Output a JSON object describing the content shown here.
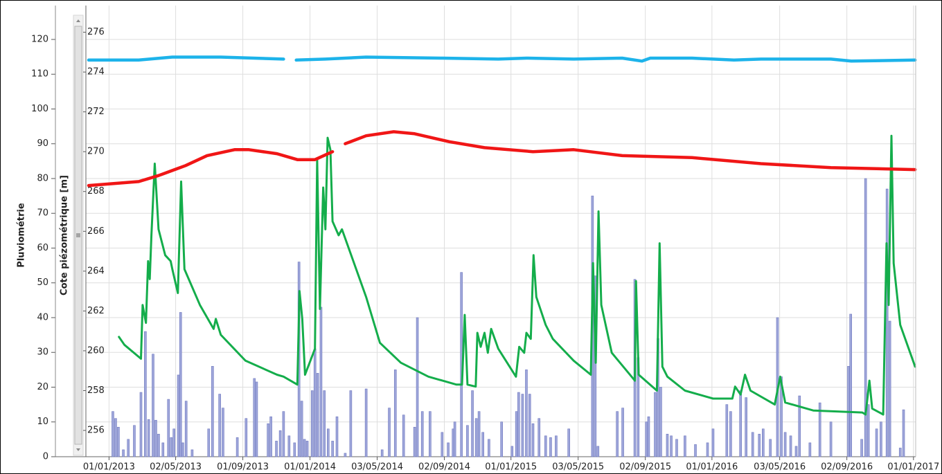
{
  "chart_data": {
    "type": "combo",
    "y_label": "Pluviométrie",
    "y2_label": "Cote piézométrique [m]",
    "xlim": [
      "2012-11-20",
      "2017-01-05"
    ],
    "xticks": [
      {
        "value": "2013-01-01",
        "label": "01/01/2013"
      },
      {
        "value": "2013-05-02",
        "label": "02/05/2013"
      },
      {
        "value": "2013-09-01",
        "label": "01/09/2013"
      },
      {
        "value": "2014-01-01",
        "label": "01/01/2014"
      },
      {
        "value": "2014-05-03",
        "label": "03/05/2014"
      },
      {
        "value": "2014-09-02",
        "label": "02/09/2014"
      },
      {
        "value": "2015-01-01",
        "label": "01/01/2015"
      },
      {
        "value": "2015-05-03",
        "label": "03/05/2015"
      },
      {
        "value": "2015-09-02",
        "label": "02/09/2015"
      },
      {
        "value": "2016-01-01",
        "label": "01/01/2016"
      },
      {
        "value": "2016-05-03",
        "label": "03/05/2016"
      },
      {
        "value": "2016-09-02",
        "label": "02/09/2016"
      },
      {
        "value": "2017-01-01",
        "label": "01/01/2017"
      }
    ],
    "ylim": [
      0,
      129.75
    ],
    "yticks": [
      0,
      10,
      20,
      30,
      40,
      50,
      60,
      70,
      80,
      90,
      100,
      110,
      120
    ],
    "y2lim": [
      254.68,
      277.34
    ],
    "y2ticks": [
      256,
      258,
      260,
      262,
      264,
      266,
      268,
      270,
      272,
      274,
      276
    ],
    "grid": true,
    "series": [
      {
        "type": "bar",
        "color": "#9ea6da",
        "x": [
          "2013-01-08",
          "2013-01-13",
          "2013-01-18",
          "2013-01-27",
          "2013-02-05",
          "2013-02-16",
          "2013-02-28",
          "2013-03-08",
          "2013-03-14",
          "2013-03-22",
          "2013-03-27",
          "2013-04-01",
          "2013-04-09",
          "2013-04-19",
          "2013-04-24",
          "2013-04-29",
          "2013-05-07",
          "2013-05-11",
          "2013-05-15",
          "2013-05-21",
          "2013-06-01",
          "2013-07-01",
          "2013-07-08",
          "2013-07-21",
          "2013-07-27",
          "2013-08-22",
          "2013-09-07",
          "2013-09-22",
          "2013-09-26",
          "2013-10-17",
          "2013-10-22",
          "2013-11-01",
          "2013-11-08",
          "2013-11-14",
          "2013-11-24",
          "2013-12-04",
          "2013-12-12",
          "2013-12-17",
          "2013-12-22",
          "2013-12-27",
          "2014-01-05",
          "2014-01-10",
          "2014-01-15",
          "2014-01-21",
          "2014-01-27",
          "2014-02-03",
          "2014-02-11",
          "2014-02-19",
          "2014-03-06",
          "2014-03-16",
          "2014-04-13",
          "2014-05-12",
          "2014-05-25",
          "2014-06-05",
          "2014-06-20",
          "2014-07-10",
          "2014-07-15",
          "2014-07-24",
          "2014-08-07",
          "2014-08-29",
          "2014-09-09",
          "2014-09-18",
          "2014-09-21",
          "2014-10-03",
          "2014-10-14",
          "2014-10-23",
          "2014-10-30",
          "2014-11-04",
          "2014-11-11",
          "2014-11-22",
          "2014-12-15",
          "2015-01-03",
          "2015-01-11",
          "2015-01-15",
          "2015-01-22",
          "2015-01-29",
          "2015-02-04",
          "2015-02-10",
          "2015-02-21",
          "2015-03-05",
          "2015-03-14",
          "2015-03-24",
          "2015-04-16",
          "2015-05-29",
          "2015-06-03",
          "2015-06-08",
          "2015-07-13",
          "2015-07-23",
          "2015-08-14",
          "2015-08-20",
          "2015-09-04",
          "2015-09-08",
          "2015-09-20",
          "2015-09-25",
          "2015-09-30",
          "2015-10-12",
          "2015-10-19",
          "2015-10-29",
          "2015-11-13",
          "2015-12-02",
          "2015-12-24",
          "2016-01-03",
          "2016-01-28",
          "2016-02-04",
          "2016-02-22",
          "2016-03-03",
          "2016-03-15",
          "2016-03-27",
          "2016-04-03",
          "2016-04-16",
          "2016-04-29",
          "2016-05-06",
          "2016-05-13",
          "2016-05-23",
          "2016-06-02",
          "2016-06-08",
          "2016-06-27",
          "2016-07-15",
          "2016-08-04",
          "2016-09-05",
          "2016-09-09",
          "2016-09-29",
          "2016-10-06",
          "2016-10-11",
          "2016-10-26",
          "2016-11-03",
          "2016-11-14",
          "2016-11-19",
          "2016-12-08",
          "2016-12-14"
        ],
        "values": [
          13,
          11,
          8.5,
          2,
          5,
          9,
          18.5,
          36,
          10.7,
          29.5,
          10.5,
          6.5,
          4,
          16.5,
          5.5,
          8,
          23.5,
          41.5,
          4,
          16,
          2,
          8,
          26,
          18,
          14,
          5.5,
          11,
          22.5,
          21.5,
          9.5,
          11.5,
          4.5,
          7.5,
          13,
          6,
          4,
          56,
          16,
          5,
          4.5,
          19,
          31,
          24,
          43,
          19,
          8,
          4.5,
          11.5,
          1,
          19,
          19.5,
          2,
          14,
          25,
          12,
          8.5,
          40,
          13,
          13,
          7,
          4,
          8,
          10,
          53,
          9,
          19,
          11,
          13,
          7,
          5,
          10,
          3,
          13,
          18.5,
          18,
          25,
          18,
          9.5,
          11,
          6,
          5.5,
          6,
          8,
          75,
          52,
          3,
          13,
          14,
          51,
          28.5,
          10,
          11.5,
          18.5,
          34,
          20,
          6.5,
          6,
          5,
          6,
          3.5,
          4,
          8,
          15,
          13,
          19,
          17,
          7,
          6.5,
          8,
          5,
          40,
          23,
          7,
          6,
          3,
          17.5,
          4,
          15.5,
          10,
          26,
          41,
          5,
          80,
          15,
          8,
          10,
          77,
          39,
          2.5,
          13.5
        ]
      },
      {
        "type": "line",
        "axis": "y2",
        "color": "#14ad4b",
        "x": [
          "2013-01-19",
          "2013-01-29",
          "2013-02-28",
          "2013-03-03",
          "2013-03-09",
          "2013-03-13",
          "2013-03-16",
          "2013-03-19",
          "2013-03-25",
          "2013-04-01",
          "2013-04-13",
          "2013-04-23",
          "2013-04-26",
          "2013-05-06",
          "2013-05-12",
          "2013-05-18",
          "2013-06-15",
          "2013-07-10",
          "2013-07-14",
          "2013-07-23",
          "2013-08-30",
          "2013-09-06",
          "2013-11-02",
          "2013-11-14",
          "2013-12-09",
          "2013-12-13",
          "2013-12-18",
          "2013-12-23",
          "2014-01-10",
          "2014-01-14",
          "2014-01-19",
          "2014-01-25",
          "2014-01-29",
          "2014-02-02",
          "2014-02-07",
          "2014-02-11",
          "2014-02-22",
          "2014-02-28",
          "2014-04-13",
          "2014-05-08",
          "2014-06-15",
          "2014-08-04",
          "2014-09-24",
          "2014-10-04",
          "2014-10-09",
          "2014-10-14",
          "2014-10-29",
          "2014-11-01",
          "2014-11-07",
          "2014-11-14",
          "2014-11-20",
          "2014-11-26",
          "2014-12-09",
          "2015-01-10",
          "2015-01-16",
          "2015-01-25",
          "2015-01-29",
          "2015-02-06",
          "2015-02-11",
          "2015-02-16",
          "2015-03-05",
          "2015-03-18",
          "2015-04-25",
          "2015-05-26",
          "2015-05-30",
          "2015-06-04",
          "2015-06-09",
          "2015-06-14",
          "2015-07-03",
          "2015-08-14",
          "2015-08-16",
          "2015-08-21",
          "2015-09-23",
          "2015-09-28",
          "2015-10-03",
          "2015-10-12",
          "2015-11-13",
          "2016-01-03",
          "2016-02-07",
          "2016-02-12",
          "2016-02-22",
          "2016-03-01",
          "2016-03-11",
          "2016-04-24",
          "2016-05-04",
          "2016-05-13",
          "2016-07-03",
          "2016-09-30",
          "2016-10-06",
          "2016-10-13",
          "2016-10-18",
          "2016-11-07",
          "2016-11-13",
          "2016-11-17",
          "2016-11-22",
          "2016-11-26",
          "2016-12-08",
          "2017-01-04"
        ],
        "values": [
          260.7,
          260.3,
          259.6,
          262.3,
          261.4,
          264.5,
          263.6,
          265.8,
          269.4,
          266.1,
          264.8,
          264.5,
          264.1,
          262.9,
          268.5,
          264.1,
          262.3,
          261.1,
          261.6,
          260.8,
          259.7,
          259.5,
          258.8,
          258.7,
          258.3,
          263.0,
          261.6,
          258.8,
          260.1,
          269.6,
          262.1,
          268.2,
          266.1,
          270.7,
          270.1,
          266.5,
          265.8,
          266.1,
          262.7,
          260.4,
          259.4,
          258.7,
          258.3,
          258.3,
          261.8,
          258.3,
          258.2,
          260.9,
          260.2,
          260.9,
          259.9,
          261.1,
          260.1,
          258.7,
          260.2,
          259.9,
          260.9,
          260.6,
          264.8,
          262.7,
          261.3,
          260.6,
          259.5,
          258.8,
          264.4,
          259.4,
          267.0,
          262.3,
          259.9,
          258.5,
          263.5,
          258.8,
          258.0,
          265.4,
          259.2,
          258.7,
          258.0,
          257.6,
          257.6,
          258.2,
          257.8,
          258.8,
          258.0,
          257.3,
          258.7,
          257.4,
          257.0,
          256.9,
          256.8,
          258.5,
          257.1,
          256.8,
          265.4,
          262.3,
          270.8,
          264.4,
          261.3,
          259.2
        ]
      },
      {
        "type": "line",
        "axis": "y2",
        "color": "#f01616",
        "x": [
          "2012-11-25",
          "2013-02-24",
          "2013-04-01",
          "2013-05-20",
          "2013-06-28",
          "2013-08-17",
          "2013-09-12",
          "2013-11-02",
          "2013-12-09",
          "2014-01-10",
          "2014-02-11",
          "2014-02-24",
          "2014-03-06",
          "2014-04-13",
          "2014-06-02",
          "2014-07-10",
          "2014-09-11",
          "2014-11-14",
          "2015-02-10",
          "2015-04-25",
          "2015-07-22",
          "2015-11-26",
          "2016-03-30",
          "2016-08-04",
          "2017-01-04"
        ],
        "values": [
          268.3,
          268.5,
          268.8,
          269.3,
          269.8,
          270.1,
          270.1,
          269.9,
          269.6,
          269.6,
          270.0,
          null,
          270.4,
          270.8,
          271.0,
          270.9,
          270.5,
          270.2,
          270.0,
          270.1,
          269.8,
          269.7,
          269.4,
          269.2,
          269.1
        ]
      },
      {
        "type": "line",
        "axis": "y2",
        "color": "#1db3ea",
        "x": [
          "2012-11-25",
          "2013-02-24",
          "2013-04-26",
          "2013-07-23",
          "2013-11-14",
          "2013-11-22",
          "2013-12-07",
          "2014-01-29",
          "2014-04-13",
          "2014-08-30",
          "2014-12-09",
          "2015-01-29",
          "2015-04-25",
          "2015-07-22",
          "2015-08-27",
          "2015-09-11",
          "2015-11-26",
          "2016-02-10",
          "2016-03-30",
          "2016-08-04",
          "2016-09-10",
          "2017-01-04"
        ],
        "values": [
          274.6,
          274.6,
          274.75,
          274.75,
          274.65,
          null,
          274.6,
          274.65,
          274.75,
          274.7,
          274.65,
          274.7,
          274.65,
          274.7,
          274.55,
          274.7,
          274.7,
          274.6,
          274.65,
          274.65,
          274.55,
          274.6
        ]
      }
    ]
  }
}
